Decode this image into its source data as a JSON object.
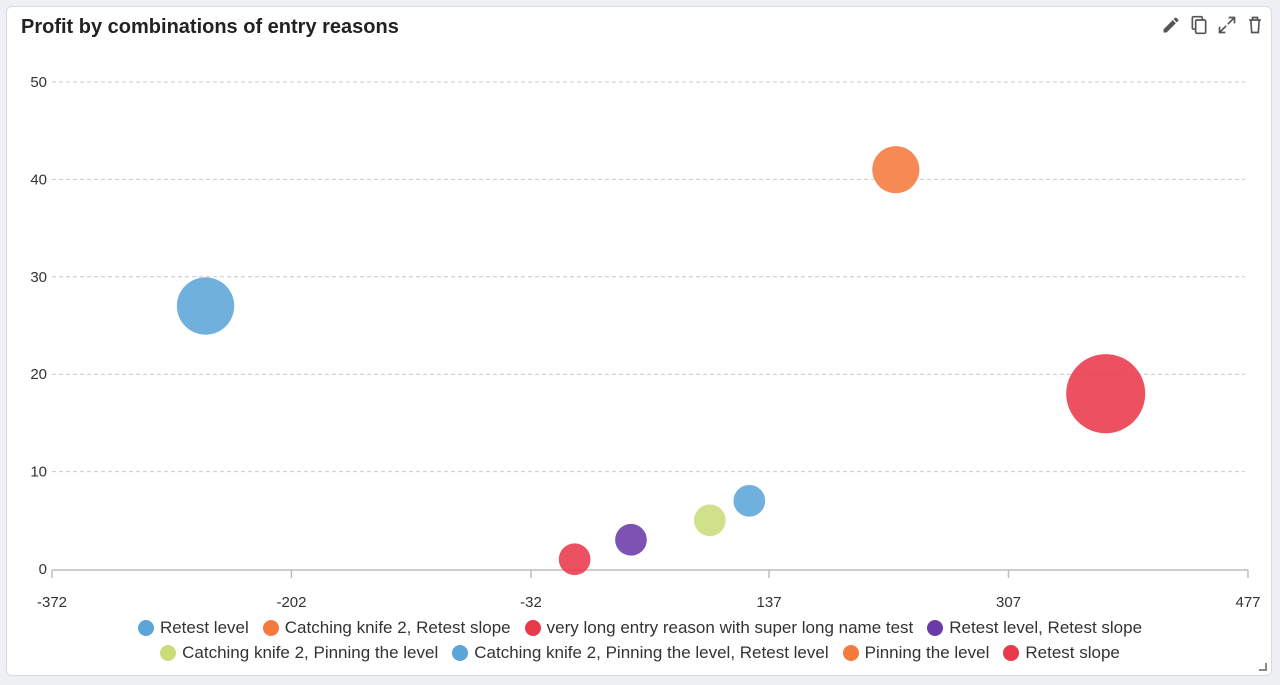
{
  "widget": {
    "title": "Profit by combinations of entry reasons",
    "toolbar": [
      "edit-icon",
      "copy-icon",
      "expand-icon",
      "delete-icon"
    ]
  },
  "chart_data": {
    "type": "scatter",
    "title": "Profit by combinations of entry reasons",
    "xlabel": "",
    "ylabel": "",
    "x_ticks": [
      "-372",
      "-202",
      "-32",
      "137",
      "307",
      "477"
    ],
    "y_ticks": [
      "0",
      "10",
      "20",
      "30",
      "40",
      "50"
    ],
    "xlim": [
      -372,
      477
    ],
    "ylim": [
      0,
      50
    ],
    "grid": true,
    "legend_position": "bottom",
    "series": [
      {
        "name": "Retest level",
        "color": "#5ba5d8",
        "points": []
      },
      {
        "name": "Catching knife 2, Retest slope",
        "color": "#f47a3e",
        "points": []
      },
      {
        "name": "very long entry reason with super long name test",
        "color": "#e8394a",
        "points": [
          {
            "x": -1,
            "y": 1,
            "size": 1
          }
        ]
      },
      {
        "name": "Retest level, Retest slope",
        "color": "#6a3aa8",
        "points": [
          {
            "x": 39,
            "y": 3,
            "size": 1
          }
        ]
      },
      {
        "name": "Catching knife 2, Pinning the level",
        "color": "#c8dd7a",
        "points": [
          {
            "x": 95,
            "y": 5,
            "size": 1
          }
        ]
      },
      {
        "name": "Catching knife 2, Pinning the level, Retest level",
        "color": "#5ba5d8",
        "points": [
          {
            "x": 123,
            "y": 7,
            "size": 1
          },
          {
            "x": -263,
            "y": 27,
            "size": 3
          }
        ]
      },
      {
        "name": "Pinning the level",
        "color": "#f47a3e",
        "points": [
          {
            "x": 227,
            "y": 41,
            "size": 2
          }
        ]
      },
      {
        "name": "Retest slope",
        "color": "#e8394a",
        "points": [
          {
            "x": 376,
            "y": 18,
            "size": 6
          }
        ]
      }
    ]
  }
}
